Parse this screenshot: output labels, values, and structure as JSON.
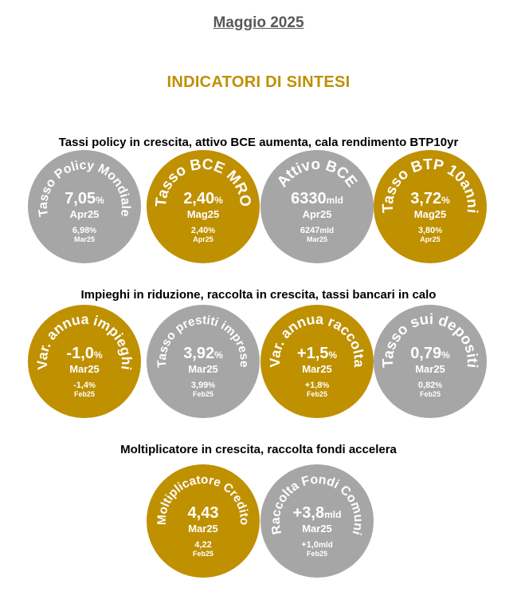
{
  "header": {
    "month": "Maggio 2025",
    "title": "INDICATORI DI SINTESI"
  },
  "colors": {
    "gold": "#bf9000",
    "grey": "#a6a6a6",
    "month_text": "#595959"
  },
  "sections": [
    {
      "title": "Tassi policy in crescita, attivo BCE aumenta, cala rendimento BTP10yr",
      "indicators": [
        {
          "label": "Tasso Policy Mondiale",
          "value": "7,05",
          "unit": "%",
          "period": "Apr25",
          "prev_value": "6,98",
          "prev_unit": "%",
          "prev_period": "Mar25",
          "color": "grey"
        },
        {
          "label": "Tasso BCE MRO",
          "value": "2,40",
          "unit": "%",
          "period": "Mag25",
          "prev_value": "2,40",
          "prev_unit": "%",
          "prev_period": "Apr25",
          "color": "gold"
        },
        {
          "label": "Attivo BCE",
          "value": "6330",
          "unit": "mld",
          "period": "Apr25",
          "prev_value": "6247",
          "prev_unit": "mld",
          "prev_period": "Mar25",
          "color": "grey"
        },
        {
          "label": "Tasso BTP 10anni",
          "value": "3,72",
          "unit": "%",
          "period": "Mag25",
          "prev_value": "3,80",
          "prev_unit": "%",
          "prev_period": "Apr25",
          "color": "gold"
        }
      ]
    },
    {
      "title": "Impieghi in riduzione, raccolta in crescita, tassi bancari in calo",
      "indicators": [
        {
          "label": "Var. annua impieghi",
          "value": "-1,0",
          "unit": "%",
          "period": "Mar25",
          "prev_value": "-1,4",
          "prev_unit": "%",
          "prev_period": "Feb25",
          "color": "gold"
        },
        {
          "label": "Tasso prestiti imprese",
          "value": "3,92",
          "unit": "%",
          "period": "Mar25",
          "prev_value": "3,99",
          "prev_unit": "%",
          "prev_period": "Feb25",
          "color": "grey"
        },
        {
          "label": "Var. annua raccolta",
          "value": "+1,5",
          "unit": "%",
          "period": "Mar25",
          "prev_value": "+1,8",
          "prev_unit": "%",
          "prev_period": "Feb25",
          "color": "gold"
        },
        {
          "label": "Tasso sui depositi",
          "value": "0,79",
          "unit": "%",
          "period": "Mar25",
          "prev_value": "0,82",
          "prev_unit": "%",
          "prev_period": "Feb25",
          "color": "grey"
        }
      ]
    },
    {
      "title": "Moltiplicatore in crescita, raccolta fondi accelera",
      "indicators": [
        {
          "label": "Moltiplicatore Credito",
          "value": "4,43",
          "unit": "",
          "period": "Mar25",
          "prev_value": "4,22",
          "prev_unit": "",
          "prev_period": "Feb25",
          "color": "gold"
        },
        {
          "label": "Raccolta Fondi Comuni",
          "value": "+3,8",
          "unit": "mld",
          "period": "Mar25",
          "prev_value": "+1,0",
          "prev_unit": "mld",
          "prev_period": "Feb25",
          "color": "grey"
        }
      ]
    }
  ]
}
